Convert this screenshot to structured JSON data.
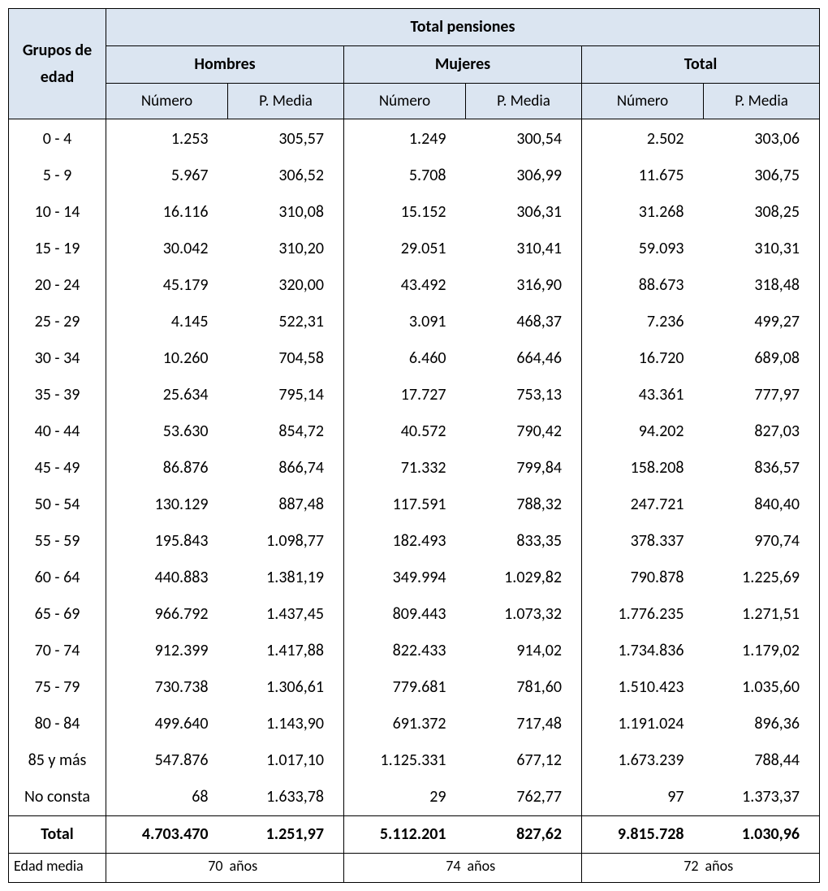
{
  "type": "table",
  "background_color": "#ffffff",
  "header_bg": "#dbe5f1",
  "border_color": "#000000",
  "font_family": "Calibri",
  "header": {
    "row_label": "Grupos de edad",
    "super": "Total pensiones",
    "groups": [
      "Hombres",
      "Mujeres",
      "Total"
    ],
    "sub": [
      "Número",
      "P. Media"
    ]
  },
  "rows": [
    {
      "age": "0 - 4",
      "h_n": "1.253",
      "h_p": "305,57",
      "m_n": "1.249",
      "m_p": "300,54",
      "t_n": "2.502",
      "t_p": "303,06"
    },
    {
      "age": "5 - 9",
      "h_n": "5.967",
      "h_p": "306,52",
      "m_n": "5.708",
      "m_p": "306,99",
      "t_n": "11.675",
      "t_p": "306,75"
    },
    {
      "age": "10 - 14",
      "h_n": "16.116",
      "h_p": "310,08",
      "m_n": "15.152",
      "m_p": "306,31",
      "t_n": "31.268",
      "t_p": "308,25"
    },
    {
      "age": "15 - 19",
      "h_n": "30.042",
      "h_p": "310,20",
      "m_n": "29.051",
      "m_p": "310,41",
      "t_n": "59.093",
      "t_p": "310,31"
    },
    {
      "age": "20 - 24",
      "h_n": "45.179",
      "h_p": "320,00",
      "m_n": "43.492",
      "m_p": "316,90",
      "t_n": "88.673",
      "t_p": "318,48"
    },
    {
      "age": "25 - 29",
      "h_n": "4.145",
      "h_p": "522,31",
      "m_n": "3.091",
      "m_p": "468,37",
      "t_n": "7.236",
      "t_p": "499,27"
    },
    {
      "age": "30 - 34",
      "h_n": "10.260",
      "h_p": "704,58",
      "m_n": "6.460",
      "m_p": "664,46",
      "t_n": "16.720",
      "t_p": "689,08"
    },
    {
      "age": "35 - 39",
      "h_n": "25.634",
      "h_p": "795,14",
      "m_n": "17.727",
      "m_p": "753,13",
      "t_n": "43.361",
      "t_p": "777,97"
    },
    {
      "age": "40 - 44",
      "h_n": "53.630",
      "h_p": "854,72",
      "m_n": "40.572",
      "m_p": "790,42",
      "t_n": "94.202",
      "t_p": "827,03"
    },
    {
      "age": "45 - 49",
      "h_n": "86.876",
      "h_p": "866,74",
      "m_n": "71.332",
      "m_p": "799,84",
      "t_n": "158.208",
      "t_p": "836,57"
    },
    {
      "age": "50 - 54",
      "h_n": "130.129",
      "h_p": "887,48",
      "m_n": "117.591",
      "m_p": "788,32",
      "t_n": "247.721",
      "t_p": "840,40"
    },
    {
      "age": "55 - 59",
      "h_n": "195.843",
      "h_p": "1.098,77",
      "m_n": "182.493",
      "m_p": "833,35",
      "t_n": "378.337",
      "t_p": "970,74"
    },
    {
      "age": "60 - 64",
      "h_n": "440.883",
      "h_p": "1.381,19",
      "m_n": "349.994",
      "m_p": "1.029,82",
      "t_n": "790.878",
      "t_p": "1.225,69"
    },
    {
      "age": "65 - 69",
      "h_n": "966.792",
      "h_p": "1.437,45",
      "m_n": "809.443",
      "m_p": "1.073,32",
      "t_n": "1.776.235",
      "t_p": "1.271,51"
    },
    {
      "age": "70 - 74",
      "h_n": "912.399",
      "h_p": "1.417,88",
      "m_n": "822.433",
      "m_p": "914,02",
      "t_n": "1.734.836",
      "t_p": "1.179,02"
    },
    {
      "age": "75 - 79",
      "h_n": "730.738",
      "h_p": "1.306,61",
      "m_n": "779.681",
      "m_p": "781,60",
      "t_n": "1.510.423",
      "t_p": "1.035,60"
    },
    {
      "age": "80 - 84",
      "h_n": "499.640",
      "h_p": "1.143,90",
      "m_n": "691.372",
      "m_p": "717,48",
      "t_n": "1.191.024",
      "t_p": "896,36"
    },
    {
      "age": "85 y más",
      "h_n": "547.876",
      "h_p": "1.017,10",
      "m_n": "1.125.331",
      "m_p": "677,12",
      "t_n": "1.673.239",
      "t_p": "788,44"
    },
    {
      "age": "No consta",
      "h_n": "68",
      "h_p": "1.633,78",
      "m_n": "29",
      "m_p": "762,77",
      "t_n": "97",
      "t_p": "1.373,37"
    }
  ],
  "total": {
    "age": "Total",
    "h_n": "4.703.470",
    "h_p": "1.251,97",
    "m_n": "5.112.201",
    "m_p": "827,62",
    "t_n": "9.815.728",
    "t_p": "1.030,96"
  },
  "edad_media": {
    "label": "Edad media",
    "unit": "años",
    "hombres": "70",
    "mujeres": "74",
    "total": "72"
  }
}
